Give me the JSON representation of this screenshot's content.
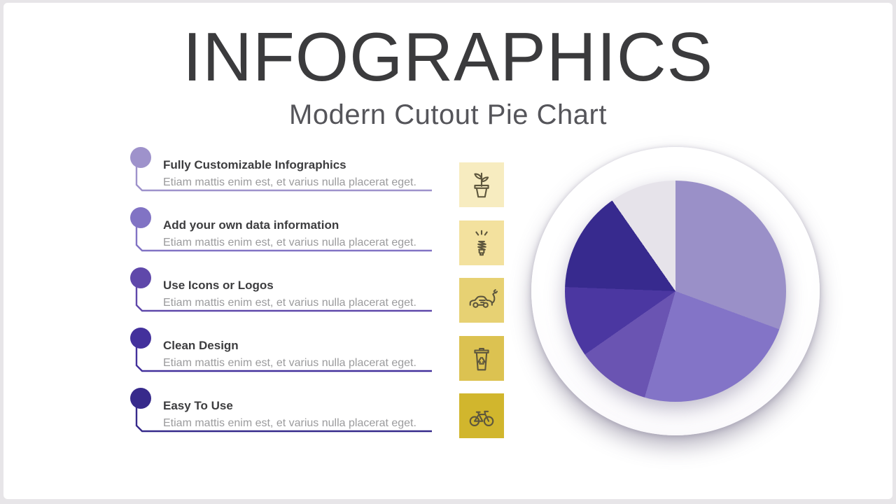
{
  "frame": {
    "background": "#e7e5e8",
    "slide_background": "#ffffff"
  },
  "header": {
    "title": "INFOGRAPHICS",
    "subtitle": "Modern Cutout Pie Chart",
    "title_color": "#3b3b3d",
    "subtitle_color": "#55555a"
  },
  "list": {
    "items": [
      {
        "title": "Fully Customizable Infographics",
        "desc": "Etiam mattis enim est, et varius nulla placerat eget.",
        "color": "#9e92cb",
        "icon": "plant-pot",
        "icon_bg": "#f7ecc0"
      },
      {
        "title": "Add your own data information",
        "desc": "Etiam mattis enim est, et varius nulla placerat eget.",
        "color": "#8173c4",
        "icon": "cfl-bulb",
        "icon_bg": "#f3e19e"
      },
      {
        "title": "Use Icons or Logos",
        "desc": "Etiam mattis enim est, et varius nulla placerat eget.",
        "color": "#5f48aa",
        "icon": "electric-car",
        "icon_bg": "#e7d173"
      },
      {
        "title": "Clean Design",
        "desc": "Etiam mattis enim est, et varius nulla placerat eget.",
        "color": "#43319c",
        "icon": "recycle-bin",
        "icon_bg": "#dcc251"
      },
      {
        "title": "Easy To Use",
        "desc": "Etiam mattis enim est, et varius nulla placerat eget.",
        "color": "#372a8b",
        "icon": "bicycle",
        "icon_bg": "#d1b62d"
      }
    ],
    "title_color": "#3d3d3f",
    "desc_color": "#9b9b9d"
  },
  "icons": {
    "stroke_color": "#5e573d"
  },
  "chart_data": {
    "type": "pie",
    "title": "Modern Cutout Pie Chart",
    "start_angle_deg": 0,
    "clockwise": true,
    "legend": false,
    "labels_visible": false,
    "slices": [
      {
        "label": "slice-1-light-lavender",
        "value": 30.6,
        "color": "#9a90c8"
      },
      {
        "label": "slice-2-medium-lavender",
        "value": 23.9,
        "color": "#8374c7"
      },
      {
        "label": "slice-3-medium-purple",
        "value": 10.8,
        "color": "#6a54b2"
      },
      {
        "label": "slice-4-dark-purple",
        "value": 10.3,
        "color": "#4b37a1"
      },
      {
        "label": "slice-5-darkest-indigo",
        "value": 14.7,
        "color": "#372a8e"
      },
      {
        "label": "slice-6-light-gray",
        "value": 9.7,
        "color": "#e6e3ea"
      }
    ]
  }
}
